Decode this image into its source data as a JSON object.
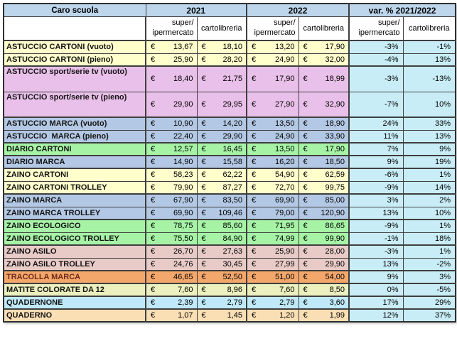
{
  "chart_data": {
    "type": "table",
    "title": "Caro scuola",
    "currency": "€",
    "col_groups": [
      "2021",
      "2022",
      "var. % 2021/2022"
    ],
    "sub_headers": {
      "super": "super/\nipermercato",
      "carto": "cartolibreria"
    },
    "rows": [
      {
        "label": "ASTUCCIO CARTONI (vuoto)",
        "group": "yellow",
        "tall": false,
        "prices_2021": [
          "13,67",
          "18,10"
        ],
        "prices_2022": [
          "13,20",
          "17,90"
        ],
        "var_pct": [
          "-3%",
          "-1%"
        ]
      },
      {
        "label": "ASTUCCIO CARTONI (pieno)",
        "group": "yellow",
        "tall": false,
        "prices_2021": [
          "25,90",
          "28,20"
        ],
        "prices_2022": [
          "24,90",
          "32,00"
        ],
        "var_pct": [
          "-4%",
          "13%"
        ]
      },
      {
        "label": "ASTUCCIO sport/serie tv (vuoto)",
        "group": "plum",
        "tall": true,
        "prices_2021": [
          "18,40",
          "21,75"
        ],
        "prices_2022": [
          "17,90",
          "18,99"
        ],
        "var_pct": [
          "-3%",
          "-13%"
        ]
      },
      {
        "label": "ASTUCCIO sport/serie tv (pieno)",
        "group": "plum",
        "tall": true,
        "prices_2021": [
          "29,90",
          "29,95"
        ],
        "prices_2022": [
          "27,90",
          "32,90"
        ],
        "var_pct": [
          "-7%",
          "10%"
        ]
      },
      {
        "label": "ASTUCCIO MARCA (vuoto)",
        "group": "blue",
        "tall": false,
        "prices_2021": [
          "10,90",
          "14,20"
        ],
        "prices_2022": [
          "13,50",
          "18,90"
        ],
        "var_pct": [
          "24%",
          "33%"
        ]
      },
      {
        "label": "ASTUCCIO  MARCA (pieno)",
        "group": "blue",
        "tall": false,
        "prices_2021": [
          "22,40",
          "29,90"
        ],
        "prices_2022": [
          "24,90",
          "33,90"
        ],
        "var_pct": [
          "11%",
          "13%"
        ]
      },
      {
        "label": "DIARIO CARTONI",
        "group": "green",
        "tall": false,
        "prices_2021": [
          "12,57",
          "16,45"
        ],
        "prices_2022": [
          "13,50",
          "17,90"
        ],
        "var_pct": [
          "7%",
          "9%"
        ]
      },
      {
        "label": "DIARIO MARCA",
        "group": "blue",
        "tall": false,
        "prices_2021": [
          "14,90",
          "15,58"
        ],
        "prices_2022": [
          "16,20",
          "18,50"
        ],
        "var_pct": [
          "9%",
          "19%"
        ]
      },
      {
        "label": "ZAINO CARTONI",
        "group": "yellow",
        "tall": false,
        "prices_2021": [
          "58,23",
          "62,22"
        ],
        "prices_2022": [
          "54,90",
          "62,59"
        ],
        "var_pct": [
          "-6%",
          "1%"
        ]
      },
      {
        "label": "ZAINO CARTONI TROLLEY",
        "group": "yellow",
        "tall": false,
        "prices_2021": [
          "79,90",
          "87,27"
        ],
        "prices_2022": [
          "72,70",
          "99,75"
        ],
        "var_pct": [
          "-9%",
          "14%"
        ]
      },
      {
        "label": "ZAINO MARCA",
        "group": "blue",
        "tall": false,
        "prices_2021": [
          "67,90",
          "83,50"
        ],
        "prices_2022": [
          "69,90",
          "85,00"
        ],
        "var_pct": [
          "3%",
          "2%"
        ]
      },
      {
        "label": "ZAINO MARCA TROLLEY",
        "group": "blue",
        "tall": false,
        "prices_2021": [
          "69,90",
          "109,46"
        ],
        "prices_2022": [
          "79,00",
          "120,90"
        ],
        "var_pct": [
          "13%",
          "10%"
        ]
      },
      {
        "label": "ZAINO ECOLOGICO",
        "group": "green",
        "tall": false,
        "prices_2021": [
          "78,75",
          "85,60"
        ],
        "prices_2022": [
          "71,95",
          "86,65"
        ],
        "var_pct": [
          "-9%",
          "1%"
        ]
      },
      {
        "label": "ZAINO ECOLOGICO TROLLEY",
        "group": "green",
        "tall": false,
        "prices_2021": [
          "75,50",
          "84,90"
        ],
        "prices_2022": [
          "74,99",
          "99,90"
        ],
        "var_pct": [
          "-1%",
          "18%"
        ]
      },
      {
        "label": "ZAINO ASILO",
        "group": "rose",
        "tall": false,
        "prices_2021": [
          "26,70",
          "27,63"
        ],
        "prices_2022": [
          "25,90",
          "28,00"
        ],
        "var_pct": [
          "-3%",
          "1%"
        ]
      },
      {
        "label": "ZAINO ASILO TROLLEY",
        "group": "rose",
        "tall": false,
        "prices_2021": [
          "24,76",
          "30,45"
        ],
        "prices_2022": [
          "27,99",
          "29,90"
        ],
        "var_pct": [
          "13%",
          "-2%"
        ]
      },
      {
        "label": "TRACOLLA MARCA",
        "group": "orange",
        "tall": false,
        "label_color": "#6E2A1B",
        "prices_2021": [
          "46,65",
          "52,50"
        ],
        "prices_2022": [
          "51,00",
          "54,00"
        ],
        "var_pct": [
          "9%",
          "3%"
        ]
      },
      {
        "label": "MATITE COLORATE DA 12",
        "group": "palegreen",
        "tall": false,
        "prices_2021": [
          "7,60",
          "8,96"
        ],
        "prices_2022": [
          "7,60",
          "8,50"
        ],
        "var_pct": [
          "0%",
          "-5%"
        ]
      },
      {
        "label": "QUADERNONE",
        "group": "cyan",
        "tall": false,
        "prices_2021": [
          "2,39",
          "2,79"
        ],
        "prices_2022": [
          "2,79",
          "3,60"
        ],
        "var_pct": [
          "17%",
          "29%"
        ]
      },
      {
        "label": "QUADERNO",
        "group": "peach",
        "tall": false,
        "prices_2021": [
          "1,07",
          "1,45"
        ],
        "prices_2022": [
          "1,20",
          "1,99"
        ],
        "var_pct": [
          "12%",
          "37%"
        ]
      }
    ]
  },
  "colors": {
    "header_bg": "#BDD6EC",
    "subheader_bg": "#FFFFFF",
    "var_bg": "#C9EDF6",
    "border": "#3F3F3F",
    "label_default": "#141414",
    "value_text": "#000000",
    "groups": {
      "yellow": "#FFFFCC",
      "plum": "#E9C0E9",
      "blue": "#B3C8E4",
      "green": "#A6F3A6",
      "rose": "#E8CBC7",
      "orange": "#F4A76B",
      "palegreen": "#EBF0BE",
      "cyan": "#BFE9F8",
      "peach": "#FBDFB4"
    }
  }
}
